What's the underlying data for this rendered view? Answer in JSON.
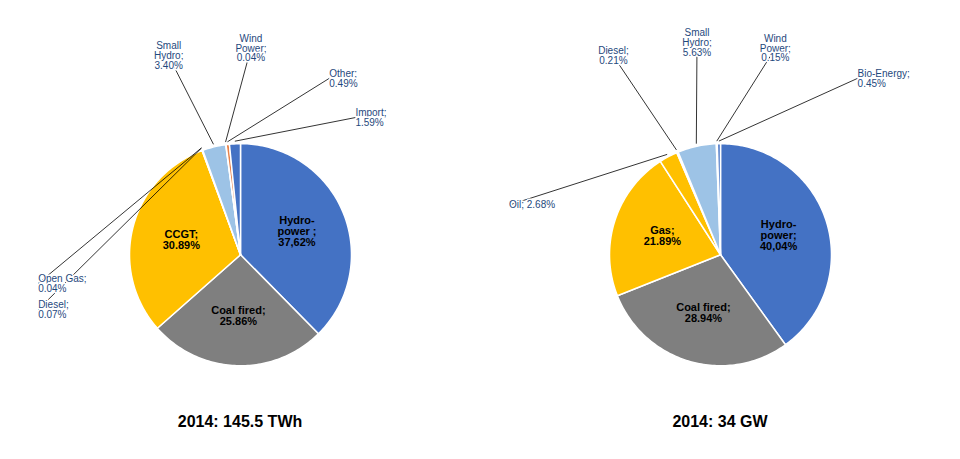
{
  "chart_data": [
    {
      "type": "pie",
      "title": "2014: 145.5 TWh",
      "categories": [
        "Hydro-\npower ;\n37,62%",
        "Coal fired;\n25.86%",
        "CCGT;\n30.89%",
        "Open Gas;\n0.04%",
        "Diesel;\n0.07%",
        "Small\nHydro;\n3.40%",
        "Wind\nPower;\n0.04%",
        "Other;\n0.49%",
        "Import;\n1.59%"
      ],
      "values": [
        37.62,
        25.86,
        30.89,
        0.04,
        0.07,
        3.4,
        0.04,
        0.49,
        1.59
      ],
      "colors": [
        "#4472C4",
        "#7F7F7F",
        "#FFC000",
        "#FFFFFF",
        "#FFFFFF",
        "#9DC3E6",
        "#BFBFBF",
        "#E8824A",
        "#4472C4"
      ]
    },
    {
      "type": "pie",
      "title": "2014: 34 GW",
      "categories": [
        "Hydro-\npower;\n40,04%",
        "Coal fired;\n28.94%",
        "Gas;\n21.89%",
        "Oil; 2.68%",
        "Diesel;\n0.21%",
        "Small\nHydro;\n5.63%",
        "Wind\nPower;\n0.15%",
        "Bio-Energy;\n0.45%"
      ],
      "values": [
        40.04,
        28.94,
        21.89,
        2.68,
        0.21,
        5.63,
        0.15,
        0.45
      ],
      "colors": [
        "#4472C4",
        "#7F7F7F",
        "#FFC000",
        "#FFC000",
        "#9966CC",
        "#9DC3E6",
        "#F5CBA7",
        "#4472C4"
      ]
    }
  ]
}
